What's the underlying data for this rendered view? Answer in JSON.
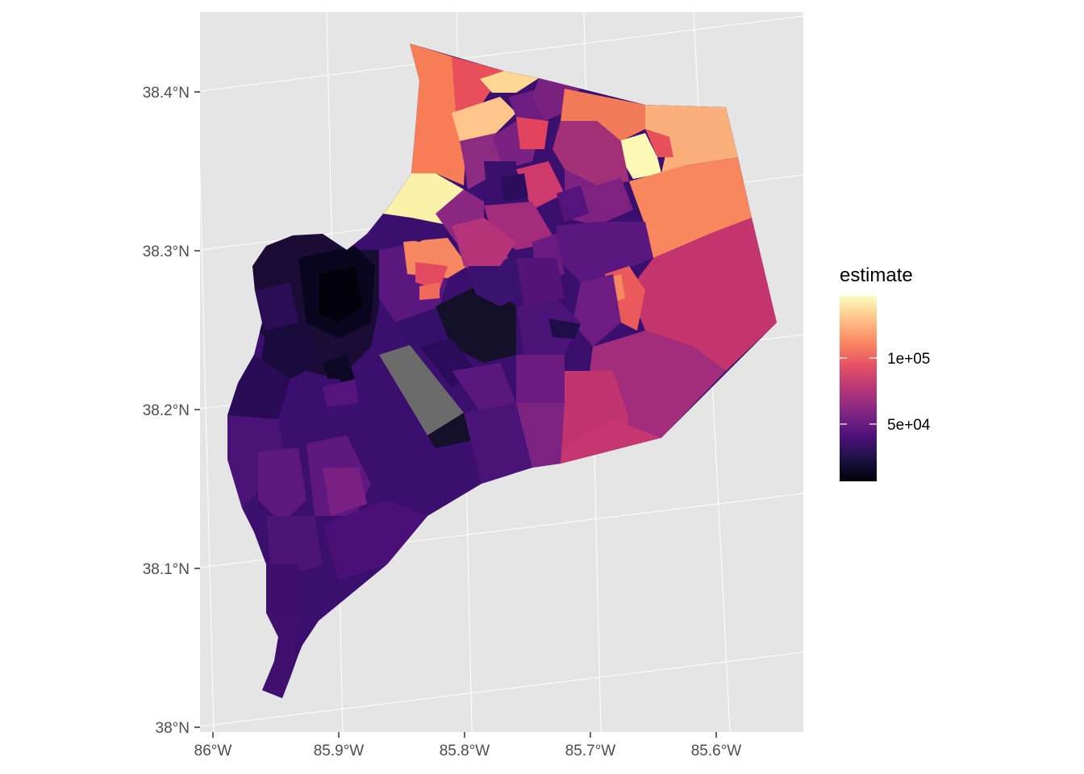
{
  "map": {
    "type": "choropleth",
    "region": "Louisville / Jefferson County, KY census tracts",
    "fill_variable": "estimate",
    "palette": "magma",
    "missing_color": "#6b6b6b",
    "panel_background": "#e5e5e5",
    "grid_color": "#ffffff",
    "x_ticks": [
      "86°W",
      "85.9°W",
      "85.8°W",
      "85.7°W",
      "85.6°W"
    ],
    "y_ticks": [
      "38.4°N",
      "38.3°N",
      "38.2°N",
      "38.1°N",
      "38°N"
    ]
  },
  "legend": {
    "title": "estimate",
    "placement": "right",
    "labels": [
      "1e+05",
      "5e+04"
    ],
    "label_values": [
      100000,
      50000
    ],
    "range": [
      10000,
      160000
    ],
    "colors": [
      "#000004",
      "#1d1147",
      "#51127c",
      "#832681",
      "#b73779",
      "#e65164",
      "#fb8861",
      "#fec287",
      "#fcfdbf"
    ]
  }
}
